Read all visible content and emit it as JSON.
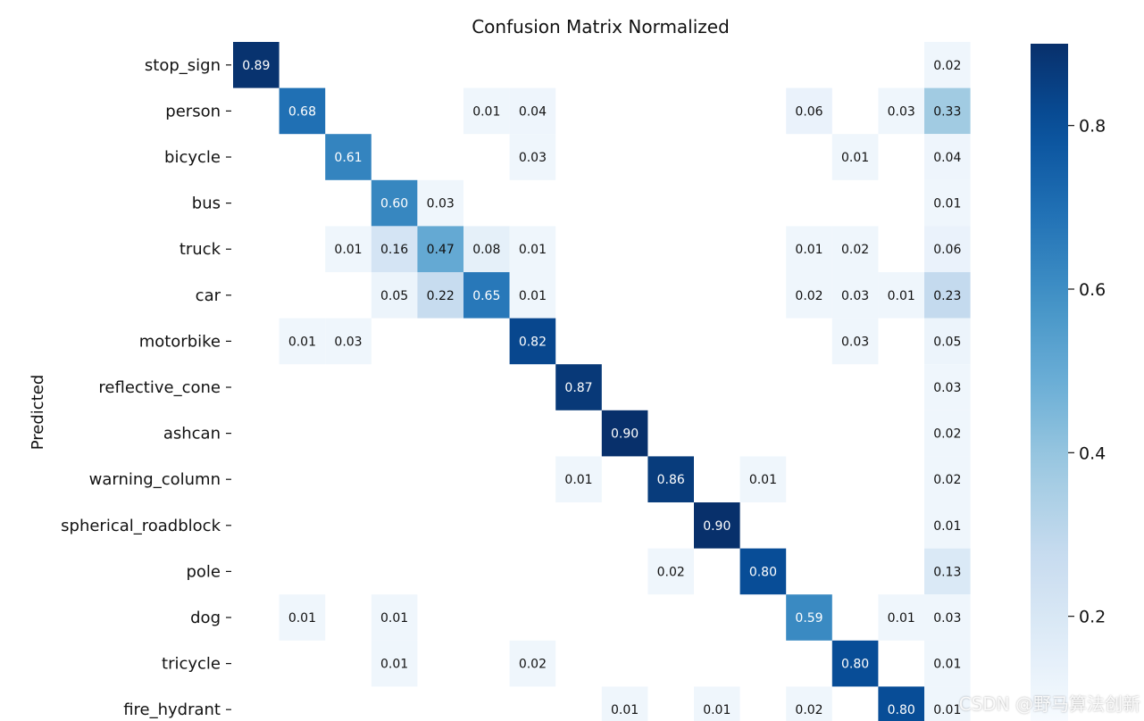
{
  "title": "Confusion Matrix Normalized",
  "watermark": "CSDN @野马算法创新",
  "chart_data": {
    "type": "heatmap",
    "title": "Confusion Matrix Normalized",
    "ylabel": "Predicted",
    "colormap": "Blues",
    "colorbar_ticks": [
      0.2,
      0.4,
      0.6,
      0.8
    ],
    "colorbar_range": [
      0,
      0.9
    ],
    "rows": [
      "stop_sign",
      "person",
      "bicycle",
      "bus",
      "truck",
      "car",
      "motorbike",
      "reflective_cone",
      "ashcan",
      "warning_column",
      "spherical_roadblock",
      "pole",
      "dog",
      "tricycle",
      "fire_hydrant"
    ],
    "num_columns": 16,
    "values": [
      [
        0.89,
        null,
        null,
        null,
        null,
        null,
        null,
        null,
        null,
        null,
        null,
        null,
        null,
        null,
        null,
        0.02
      ],
      [
        null,
        0.68,
        null,
        null,
        null,
        0.01,
        0.04,
        null,
        null,
        null,
        null,
        null,
        0.06,
        null,
        0.03,
        0.33
      ],
      [
        null,
        null,
        0.61,
        null,
        null,
        null,
        0.03,
        null,
        null,
        null,
        null,
        null,
        null,
        0.01,
        null,
        0.04
      ],
      [
        null,
        null,
        null,
        0.6,
        0.03,
        null,
        null,
        null,
        null,
        null,
        null,
        null,
        null,
        null,
        null,
        0.01
      ],
      [
        null,
        null,
        0.01,
        0.16,
        0.47,
        0.08,
        0.01,
        null,
        null,
        null,
        null,
        null,
        0.01,
        0.02,
        null,
        0.06
      ],
      [
        null,
        null,
        null,
        0.05,
        0.22,
        0.65,
        0.01,
        null,
        null,
        null,
        null,
        null,
        0.02,
        0.03,
        0.01,
        0.23
      ],
      [
        null,
        0.01,
        0.03,
        null,
        null,
        null,
        0.82,
        null,
        null,
        null,
        null,
        null,
        null,
        0.03,
        null,
        0.05
      ],
      [
        null,
        null,
        null,
        null,
        null,
        null,
        null,
        0.87,
        null,
        null,
        null,
        null,
        null,
        null,
        null,
        0.03
      ],
      [
        null,
        null,
        null,
        null,
        null,
        null,
        null,
        null,
        0.9,
        null,
        null,
        null,
        null,
        null,
        null,
        0.02
      ],
      [
        null,
        null,
        null,
        null,
        null,
        null,
        null,
        0.01,
        null,
        0.86,
        null,
        0.01,
        null,
        null,
        null,
        0.02
      ],
      [
        null,
        null,
        null,
        null,
        null,
        null,
        null,
        null,
        null,
        null,
        0.9,
        null,
        null,
        null,
        null,
        0.01
      ],
      [
        null,
        null,
        null,
        null,
        null,
        null,
        null,
        null,
        null,
        0.02,
        null,
        0.8,
        null,
        null,
        null,
        0.13
      ],
      [
        null,
        0.01,
        null,
        0.01,
        null,
        null,
        null,
        null,
        null,
        null,
        null,
        null,
        0.59,
        null,
        0.01,
        0.03
      ],
      [
        null,
        null,
        null,
        0.01,
        null,
        null,
        0.02,
        null,
        null,
        null,
        null,
        null,
        null,
        0.8,
        null,
        0.01
      ],
      [
        null,
        null,
        null,
        null,
        null,
        null,
        null,
        null,
        0.01,
        null,
        0.01,
        null,
        0.02,
        null,
        0.8,
        0.01
      ]
    ]
  }
}
